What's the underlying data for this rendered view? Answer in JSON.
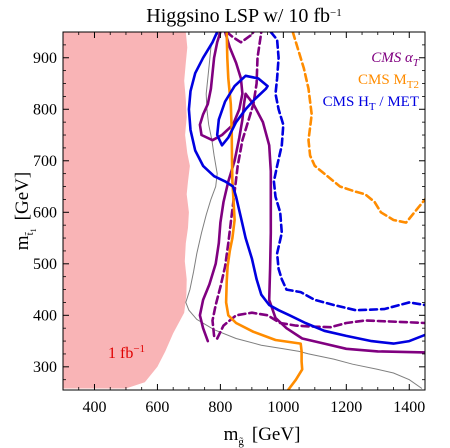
{
  "chart_data": {
    "type": "line",
    "title": "Higgsino LSP w/ 10 fb",
    "title_sup": "−1",
    "xlabel": "m",
    "xlabel_sub": "g̃",
    "xlabel_unit": "[GeV]",
    "ylabel": "m",
    "ylabel_sub": "t̃",
    "ylabel_subsub": "1",
    "ylabel_unit": "[GeV]",
    "xlim": [
      300,
      1450
    ],
    "ylim": [
      255,
      950
    ],
    "x_ticks": [
      400,
      600,
      800,
      1000,
      1200,
      1400
    ],
    "y_ticks": [
      300,
      400,
      500,
      600,
      700,
      800,
      900
    ],
    "legend_position": "top-right",
    "legend": [
      {
        "label": "CMS α",
        "sub": "T",
        "color": "#800080"
      },
      {
        "label": "CMS M",
        "sub": "T2",
        "color": "#ff8c00"
      },
      {
        "label": "CMS H",
        "sub": "T",
        "suffix": " / MET",
        "color": "#0000e0"
      }
    ],
    "excluded_region": {
      "label": "1 fb",
      "label_sup": "−1",
      "label_color": "#e00000",
      "fill": "#f9b4b6",
      "boundary": [
        [
          300,
          255
        ],
        [
          300,
          950
        ],
        [
          690,
          950
        ],
        [
          695,
          920
        ],
        [
          690,
          890
        ],
        [
          685,
          855
        ],
        [
          690,
          820
        ],
        [
          693,
          785
        ],
        [
          688,
          750
        ],
        [
          695,
          715
        ],
        [
          703,
          690
        ],
        [
          697,
          660
        ],
        [
          693,
          635
        ],
        [
          700,
          600
        ],
        [
          697,
          570
        ],
        [
          690,
          540
        ],
        [
          687,
          505
        ],
        [
          693,
          470
        ],
        [
          692,
          440
        ],
        [
          685,
          405
        ],
        [
          650,
          365
        ],
        [
          625,
          330
        ],
        [
          600,
          300
        ],
        [
          560,
          270
        ],
        [
          500,
          258
        ],
        [
          300,
          258
        ]
      ]
    },
    "boundary_line": {
      "color": "#7f7f7f",
      "points": [
        [
          800,
          950
        ],
        [
          780,
          940
        ],
        [
          770,
          920
        ],
        [
          765,
          890
        ],
        [
          760,
          860
        ],
        [
          755,
          830
        ],
        [
          757,
          800
        ],
        [
          763,
          770
        ],
        [
          773,
          740
        ],
        [
          780,
          710
        ],
        [
          790,
          675
        ],
        [
          785,
          650
        ],
        [
          770,
          625
        ],
        [
          755,
          595
        ],
        [
          740,
          560
        ],
        [
          725,
          520
        ],
        [
          715,
          485
        ],
        [
          703,
          450
        ],
        [
          690,
          425
        ],
        [
          700,
          410
        ],
        [
          725,
          392
        ],
        [
          780,
          372
        ],
        [
          850,
          355
        ],
        [
          930,
          342
        ],
        [
          1000,
          335
        ],
        [
          1050,
          330
        ],
        [
          1080,
          325
        ],
        [
          1160,
          315
        ],
        [
          1220,
          305
        ],
        [
          1300,
          295
        ],
        [
          1350,
          288
        ],
        [
          1400,
          275
        ],
        [
          1440,
          258
        ]
      ]
    },
    "series": [
      {
        "name": "CMS α",
        "color": "#800080",
        "dash": "solid",
        "points": [
          [
            800,
            950
          ],
          [
            790,
            930
          ],
          [
            780,
            900
          ],
          [
            775,
            870
          ],
          [
            770,
            840
          ],
          [
            760,
            810
          ],
          [
            745,
            790
          ],
          [
            735,
            770
          ],
          [
            740,
            750
          ],
          [
            775,
            740
          ],
          [
            805,
            750
          ],
          [
            840,
            770
          ],
          [
            860,
            800
          ],
          [
            870,
            830
          ],
          [
            865,
            860
          ],
          [
            850,
            890
          ],
          [
            830,
            920
          ],
          [
            815,
            950
          ]
        ]
      },
      {
        "name": "CMS α",
        "color": "#800080",
        "dash": "solid",
        "points": [
          [
            760,
            350
          ],
          [
            745,
            375
          ],
          [
            735,
            400
          ],
          [
            745,
            430
          ],
          [
            765,
            460
          ],
          [
            785,
            500
          ],
          [
            795,
            540
          ],
          [
            800,
            580
          ],
          [
            810,
            620
          ],
          [
            825,
            660
          ],
          [
            845,
            700
          ],
          [
            860,
            745
          ],
          [
            870,
            780
          ],
          [
            875,
            810
          ],
          [
            880,
            830
          ],
          [
            905,
            810
          ],
          [
            935,
            775
          ],
          [
            955,
            730
          ],
          [
            960,
            680
          ],
          [
            960,
            625
          ],
          [
            960,
            560
          ],
          [
            958,
            490
          ],
          [
            955,
            430
          ],
          [
            975,
            395
          ],
          [
            1010,
            375
          ],
          [
            1060,
            355
          ],
          [
            1130,
            345
          ],
          [
            1200,
            335
          ],
          [
            1300,
            330
          ],
          [
            1450,
            328
          ]
        ]
      },
      {
        "name": "CMS α",
        "color": "#800080",
        "dash": "dash",
        "points": [
          [
            820,
            950
          ],
          [
            840,
            940
          ],
          [
            865,
            930
          ],
          [
            900,
            945
          ],
          [
            905,
            950
          ]
        ]
      },
      {
        "name": "CMS α",
        "color": "#800080",
        "dash": "dash",
        "points": [
          [
            780,
            360
          ],
          [
            775,
            390
          ],
          [
            785,
            420
          ],
          [
            800,
            455
          ],
          [
            815,
            495
          ],
          [
            825,
            540
          ],
          [
            835,
            590
          ],
          [
            845,
            640
          ],
          [
            855,
            690
          ],
          [
            870,
            740
          ],
          [
            890,
            780
          ],
          [
            905,
            810
          ],
          [
            915,
            850
          ],
          [
            918,
            900
          ],
          [
            930,
            950
          ]
        ]
      },
      {
        "name": "CMS α",
        "color": "#800080",
        "dash": "dash",
        "points": [
          [
            790,
            355
          ],
          [
            810,
            380
          ],
          [
            850,
            400
          ],
          [
            900,
            405
          ],
          [
            950,
            400
          ],
          [
            990,
            385
          ],
          [
            1040,
            380
          ],
          [
            1090,
            378
          ],
          [
            1150,
            377
          ],
          [
            1200,
            385
          ],
          [
            1260,
            390
          ],
          [
            1340,
            388
          ],
          [
            1450,
            385
          ]
        ]
      },
      {
        "name": "CMS M",
        "color": "#ff8c00",
        "dash": "solid",
        "points": [
          [
            820,
            950
          ],
          [
            822,
            900
          ],
          [
            825,
            860
          ],
          [
            833,
            810
          ],
          [
            836,
            760
          ],
          [
            837,
            700
          ],
          [
            838,
            660
          ],
          [
            842,
            620
          ],
          [
            845,
            585
          ],
          [
            838,
            550
          ],
          [
            830,
            525
          ],
          [
            823,
            495
          ],
          [
            820,
            465
          ],
          [
            818,
            425
          ],
          [
            825,
            400
          ],
          [
            850,
            385
          ],
          [
            905,
            368
          ],
          [
            975,
            352
          ],
          [
            1055,
            345
          ],
          [
            1058,
            330
          ],
          [
            1058,
            310
          ],
          [
            1060,
            295
          ],
          [
            1040,
            275
          ],
          [
            1015,
            255
          ]
        ]
      },
      {
        "name": "CMS M",
        "color": "#ff8c00",
        "dash": "dash",
        "points": [
          [
            1030,
            950
          ],
          [
            1045,
            920
          ],
          [
            1065,
            880
          ],
          [
            1080,
            840
          ],
          [
            1090,
            790
          ],
          [
            1080,
            740
          ],
          [
            1085,
            710
          ],
          [
            1100,
            690
          ],
          [
            1140,
            670
          ],
          [
            1180,
            650
          ],
          [
            1230,
            640
          ],
          [
            1260,
            635
          ],
          [
            1290,
            620
          ],
          [
            1310,
            600
          ],
          [
            1350,
            585
          ],
          [
            1390,
            580
          ],
          [
            1430,
            610
          ],
          [
            1450,
            625
          ]
        ]
      },
      {
        "name": "CMS H",
        "color": "#0000e0",
        "dash": "solid",
        "points": [
          [
            790,
            950
          ],
          [
            775,
            930
          ],
          [
            745,
            900
          ],
          [
            720,
            870
          ],
          [
            705,
            835
          ],
          [
            700,
            800
          ],
          [
            705,
            760
          ],
          [
            720,
            720
          ],
          [
            745,
            690
          ],
          [
            780,
            670
          ],
          [
            815,
            660
          ],
          [
            840,
            650
          ],
          [
            850,
            630
          ],
          [
            865,
            590
          ],
          [
            880,
            550
          ],
          [
            900,
            510
          ],
          [
            915,
            470
          ],
          [
            930,
            440
          ],
          [
            955,
            420
          ],
          [
            985,
            410
          ],
          [
            1020,
            400
          ],
          [
            1070,
            385
          ],
          [
            1130,
            370
          ],
          [
            1200,
            360
          ],
          [
            1280,
            350
          ],
          [
            1350,
            345
          ],
          [
            1400,
            350
          ],
          [
            1450,
            362
          ]
        ]
      },
      {
        "name": "CMS H",
        "color": "#0000e0",
        "dash": "solid",
        "points": [
          [
            950,
            845
          ],
          [
            920,
            860
          ],
          [
            880,
            865
          ],
          [
            845,
            845
          ],
          [
            815,
            815
          ],
          [
            795,
            780
          ],
          [
            790,
            750
          ],
          [
            805,
            730
          ],
          [
            825,
            745
          ],
          [
            850,
            775
          ],
          [
            880,
            800
          ],
          [
            910,
            820
          ],
          [
            945,
            840
          ],
          [
            950,
            845
          ]
        ]
      },
      {
        "name": "CMS H",
        "color": "#0000e0",
        "dash": "dash",
        "points": [
          [
            960,
            950
          ],
          [
            980,
            935
          ],
          [
            985,
            900
          ],
          [
            980,
            860
          ],
          [
            975,
            830
          ],
          [
            985,
            800
          ],
          [
            1000,
            770
          ],
          [
            995,
            730
          ],
          [
            980,
            690
          ],
          [
            970,
            660
          ],
          [
            975,
            630
          ],
          [
            990,
            600
          ],
          [
            995,
            560
          ],
          [
            980,
            520
          ],
          [
            985,
            490
          ],
          [
            995,
            470
          ],
          [
            1010,
            450
          ],
          [
            1055,
            445
          ],
          [
            1100,
            430
          ],
          [
            1160,
            420
          ],
          [
            1230,
            410
          ],
          [
            1320,
            412
          ],
          [
            1400,
            425
          ],
          [
            1450,
            420
          ]
        ]
      }
    ]
  }
}
